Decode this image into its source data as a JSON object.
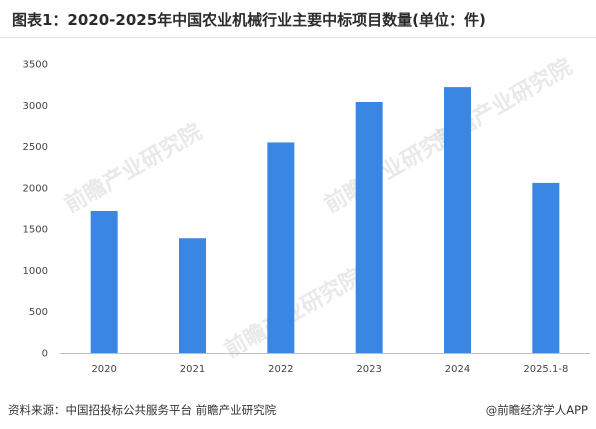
{
  "header": {
    "title": "图表1：2020-2025年中国农业机械行业主要中标项目数量(单位：件)"
  },
  "footer": {
    "source": "资料来源：中国招投标公共服务平台 前瞻产业研究院",
    "credit": "@前瞻经济学人APP"
  },
  "watermark": {
    "text": "前瞻产业研究院"
  },
  "colors": {
    "bar": "#3a86e4",
    "axis": "#bfbfbf"
  },
  "chart_data": {
    "type": "bar",
    "title": "图表1：2020-2025年中国农业机械行业主要中标项目数量(单位：件)",
    "xlabel": "",
    "ylabel": "",
    "categories": [
      "2020",
      "2021",
      "2022",
      "2023",
      "2024",
      "2025.1-8"
    ],
    "values": [
      1720,
      1390,
      2550,
      3040,
      3220,
      2060
    ],
    "ylim": [
      0,
      3500
    ],
    "yticks": [
      0,
      500,
      1000,
      1500,
      2000,
      2500,
      3000,
      3500
    ],
    "grid": false,
    "legend": "none"
  }
}
